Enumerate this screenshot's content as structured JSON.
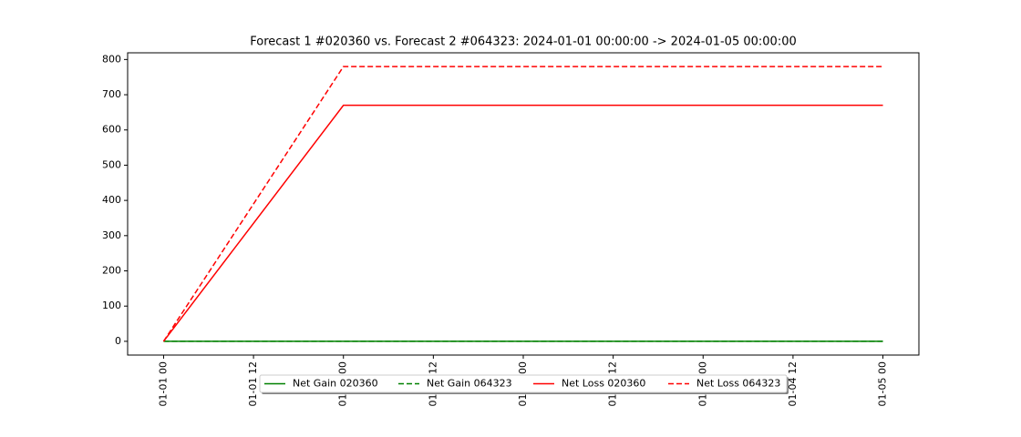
{
  "chart_data": {
    "type": "line",
    "title": "Forecast 1 #020360 vs. Forecast 2 #064323: 2024-01-01 00:00:00 -> 2024-01-05 00:00:00",
    "x": [
      "01-01 00",
      "01-02 00",
      "01-03 00",
      "01-04 00",
      "01-05 00"
    ],
    "series": [
      {
        "name": "Net Gain 020360",
        "color": "#008000",
        "linestyle": "solid",
        "values": [
          0,
          0,
          0,
          0,
          0
        ]
      },
      {
        "name": "Net Gain 064323",
        "color": "#008000",
        "linestyle": "dashed",
        "values": [
          0,
          0,
          0,
          0,
          0
        ]
      },
      {
        "name": "Net Loss 020360",
        "color": "#ff0000",
        "linestyle": "solid",
        "values": [
          0,
          670,
          670,
          670,
          670
        ]
      },
      {
        "name": "Net Loss 064323",
        "color": "#ff0000",
        "linestyle": "dashed",
        "values": [
          0,
          780,
          780,
          780,
          780
        ]
      }
    ],
    "xticks": [
      "01-01 00",
      "01-01 12",
      "01-02 00",
      "01-02 12",
      "01-03 00",
      "01-03 12",
      "01-04 00",
      "01-04 12",
      "01-05 00"
    ],
    "ylim": [
      -39,
      819
    ],
    "yticks": [
      0,
      100,
      200,
      300,
      400,
      500,
      600,
      700,
      800
    ],
    "legend": "lower center"
  }
}
